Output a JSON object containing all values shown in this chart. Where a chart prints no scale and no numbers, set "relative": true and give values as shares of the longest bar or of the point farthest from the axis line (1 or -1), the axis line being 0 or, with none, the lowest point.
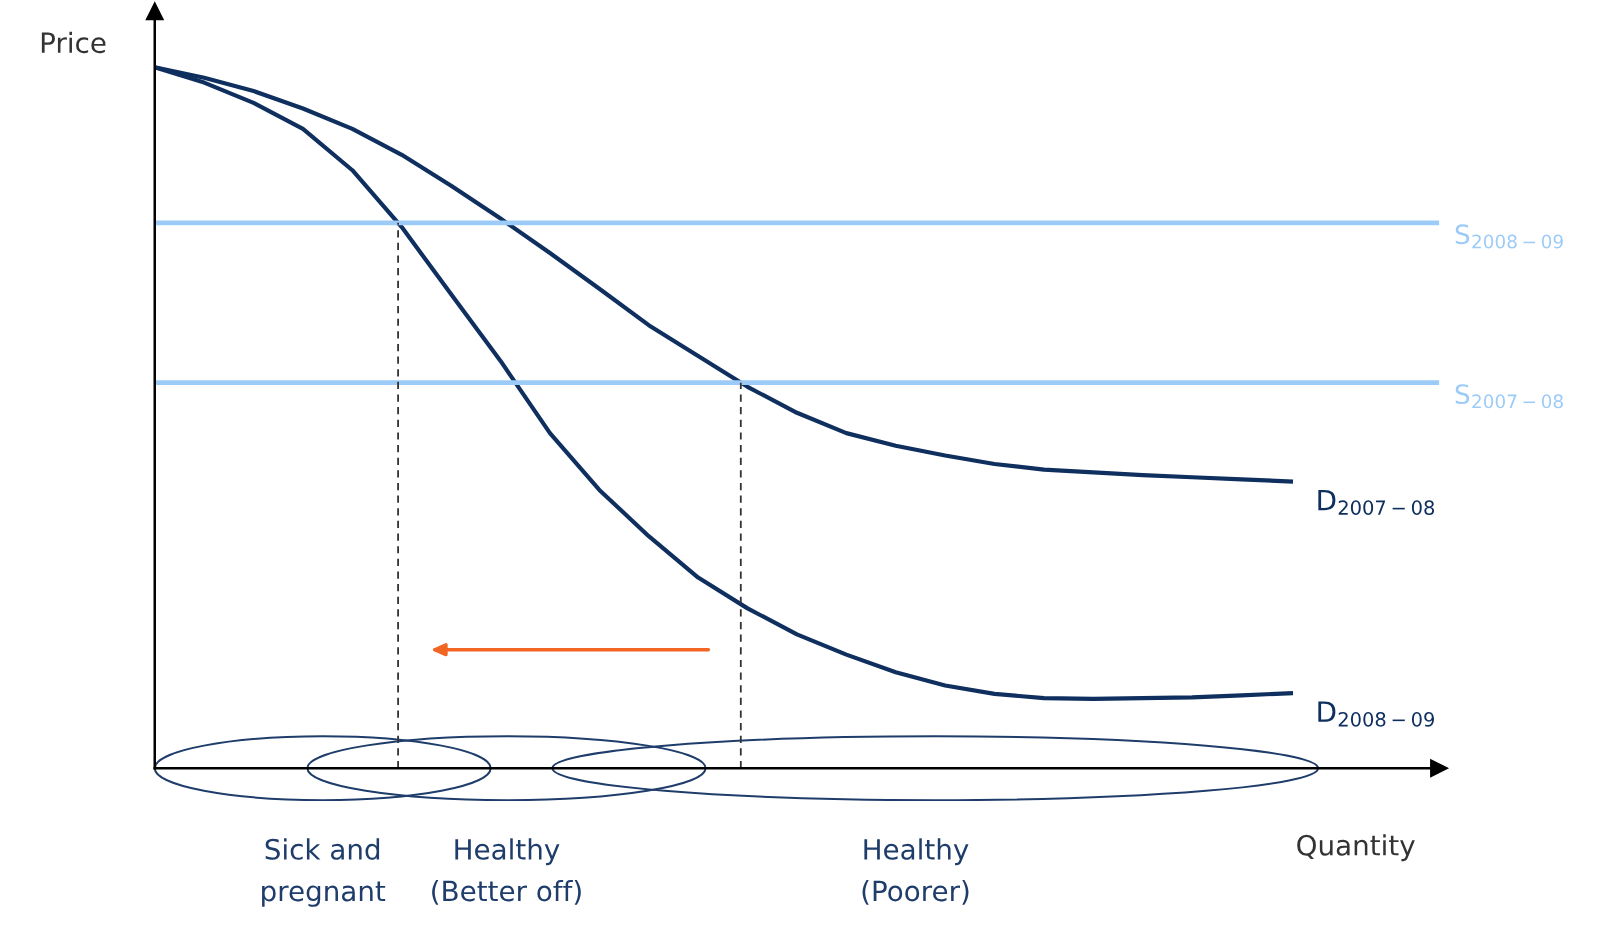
{
  "chart_data": {
    "type": "line",
    "relative": true,
    "xlabel": "Quantity",
    "ylabel": "Price",
    "categories": [
      null,
      null,
      null,
      null,
      null,
      null,
      null,
      null,
      null,
      null,
      null,
      null,
      null,
      null,
      null,
      null,
      null,
      null,
      null,
      null,
      null,
      null,
      null,
      null,
      null,
      null,
      null
    ],
    "series": [
      {
        "name": "D$_{2007−08}$",
        "color": "#0f2f5f",
        "values": [
          1.0,
          0.985,
          0.966,
          0.941,
          0.912,
          0.875,
          0.831,
          0.784,
          0.735,
          0.684,
          0.632,
          0.588,
          0.544,
          0.507,
          0.478,
          0.46,
          0.446,
          0.434,
          0.426,
          0.422,
          0.418,
          0.415,
          0.412,
          0.409,
          null,
          null,
          null
        ]
      },
      {
        "name": "D$_{2008−09}$",
        "color": "#0f2f5f",
        "values": [
          1.0,
          0.978,
          0.949,
          0.912,
          0.853,
          0.772,
          0.676,
          0.581,
          0.478,
          0.397,
          0.331,
          0.272,
          0.228,
          0.191,
          0.162,
          0.137,
          0.118,
          0.106,
          0.1,
          0.099,
          0.1,
          0.101,
          0.104,
          0.107,
          null,
          null,
          null
        ]
      }
    ],
    "ref_lines": [
      {
        "axis": "y",
        "value": 0.55,
        "label": "S$_{2007−08}$",
        "color": "#9ccbf7"
      },
      {
        "axis": "y",
        "value": 0.778,
        "label": "S$_{2008−09}$",
        "color": "#9ccbf7"
      }
    ],
    "annotations": [
      "Sick and\npregnant",
      "Healthy\n(Better off)",
      "Healthy\n(Poorer)"
    ],
    "grid": false,
    "legend": false,
    "marker": "none",
    "line_style": "solid"
  }
}
